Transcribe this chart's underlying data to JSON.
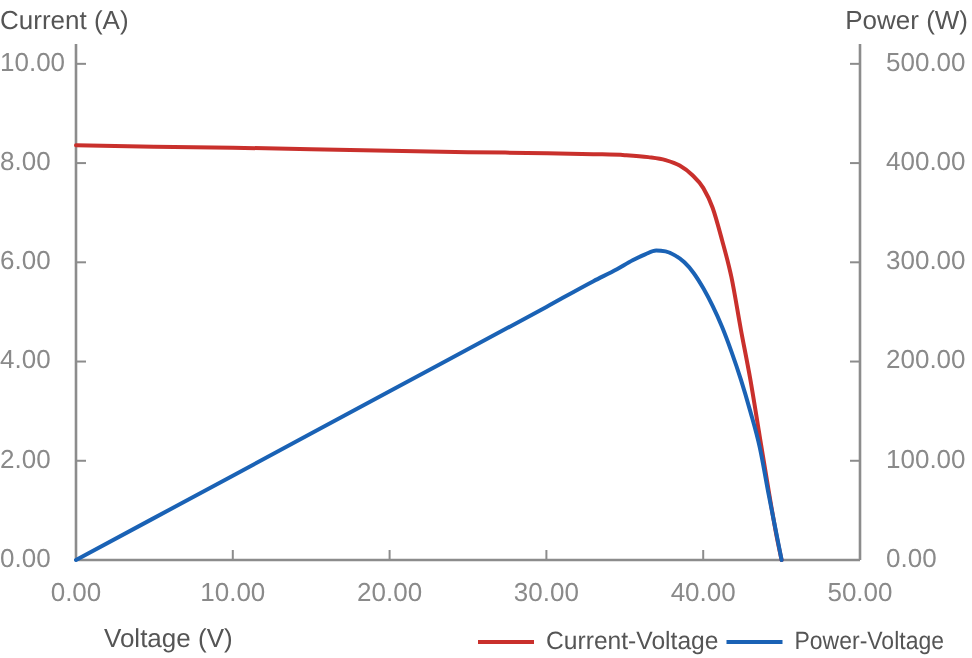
{
  "chart_data": {
    "type": "line",
    "xlabel": "Voltage (V)",
    "ylabel": "Current (A)",
    "y2label": "Power (W)",
    "xlim": [
      0,
      50
    ],
    "xticks": [
      {
        "value": 0,
        "label": "0.00"
      },
      {
        "value": 10,
        "label": "10.00"
      },
      {
        "value": 20,
        "label": "20.00"
      },
      {
        "value": 30,
        "label": "30.00"
      },
      {
        "value": 40,
        "label": "40.00"
      },
      {
        "value": 50,
        "label": "50.00"
      }
    ],
    "ylim": [
      0,
      10.4
    ],
    "yticks": [
      {
        "value": 0,
        "label": "0.00"
      },
      {
        "value": 2,
        "label": "2.00"
      },
      {
        "value": 4,
        "label": "4.00"
      },
      {
        "value": 6,
        "label": "6.00"
      },
      {
        "value": 8,
        "label": "8.00"
      },
      {
        "value": 10,
        "label": "10.00"
      }
    ],
    "y2lim": [
      0,
      520
    ],
    "y2ticks": [
      {
        "value": 0,
        "label": "0.00"
      },
      {
        "value": 100,
        "label": "100.00"
      },
      {
        "value": 200,
        "label": "200.00"
      },
      {
        "value": 300,
        "label": "300.00"
      },
      {
        "value": 400,
        "label": "400.00"
      },
      {
        "value": 500,
        "label": "500.00"
      }
    ],
    "legend": "bottom right",
    "series": [
      {
        "name": "Current-Voltage",
        "color": "#c9302c",
        "x": [
          0,
          5,
          10,
          15,
          20,
          25,
          30,
          33,
          35,
          36.5,
          37.6,
          38.5,
          39.3,
          40,
          40.6,
          41.2,
          41.8,
          42.4,
          43,
          43.6,
          44.2,
          44.7,
          45
        ],
        "values": [
          8.36,
          8.33,
          8.31,
          8.28,
          8.25,
          8.22,
          8.2,
          8.18,
          8.16,
          8.12,
          8.06,
          7.95,
          7.76,
          7.5,
          7.1,
          6.45,
          5.7,
          4.65,
          3.65,
          2.5,
          1.35,
          0.45,
          0
        ]
      },
      {
        "name": "Power-Voltage",
        "color": "#1a62b5",
        "axis": "y2",
        "x": [
          0,
          10,
          20,
          30,
          33,
          34.5,
          35.5,
          36.3,
          37,
          37.6,
          38.2,
          38.8,
          39.4,
          40,
          40.6,
          41.2,
          41.8,
          42.4,
          43,
          43.6,
          44.2,
          44.6,
          45
        ],
        "values": [
          0,
          85,
          170,
          255,
          281,
          293,
          302,
          308,
          312,
          311,
          307,
          300,
          289,
          274,
          256,
          235,
          210,
          182,
          150,
          114,
          64,
          32,
          0
        ]
      }
    ]
  }
}
